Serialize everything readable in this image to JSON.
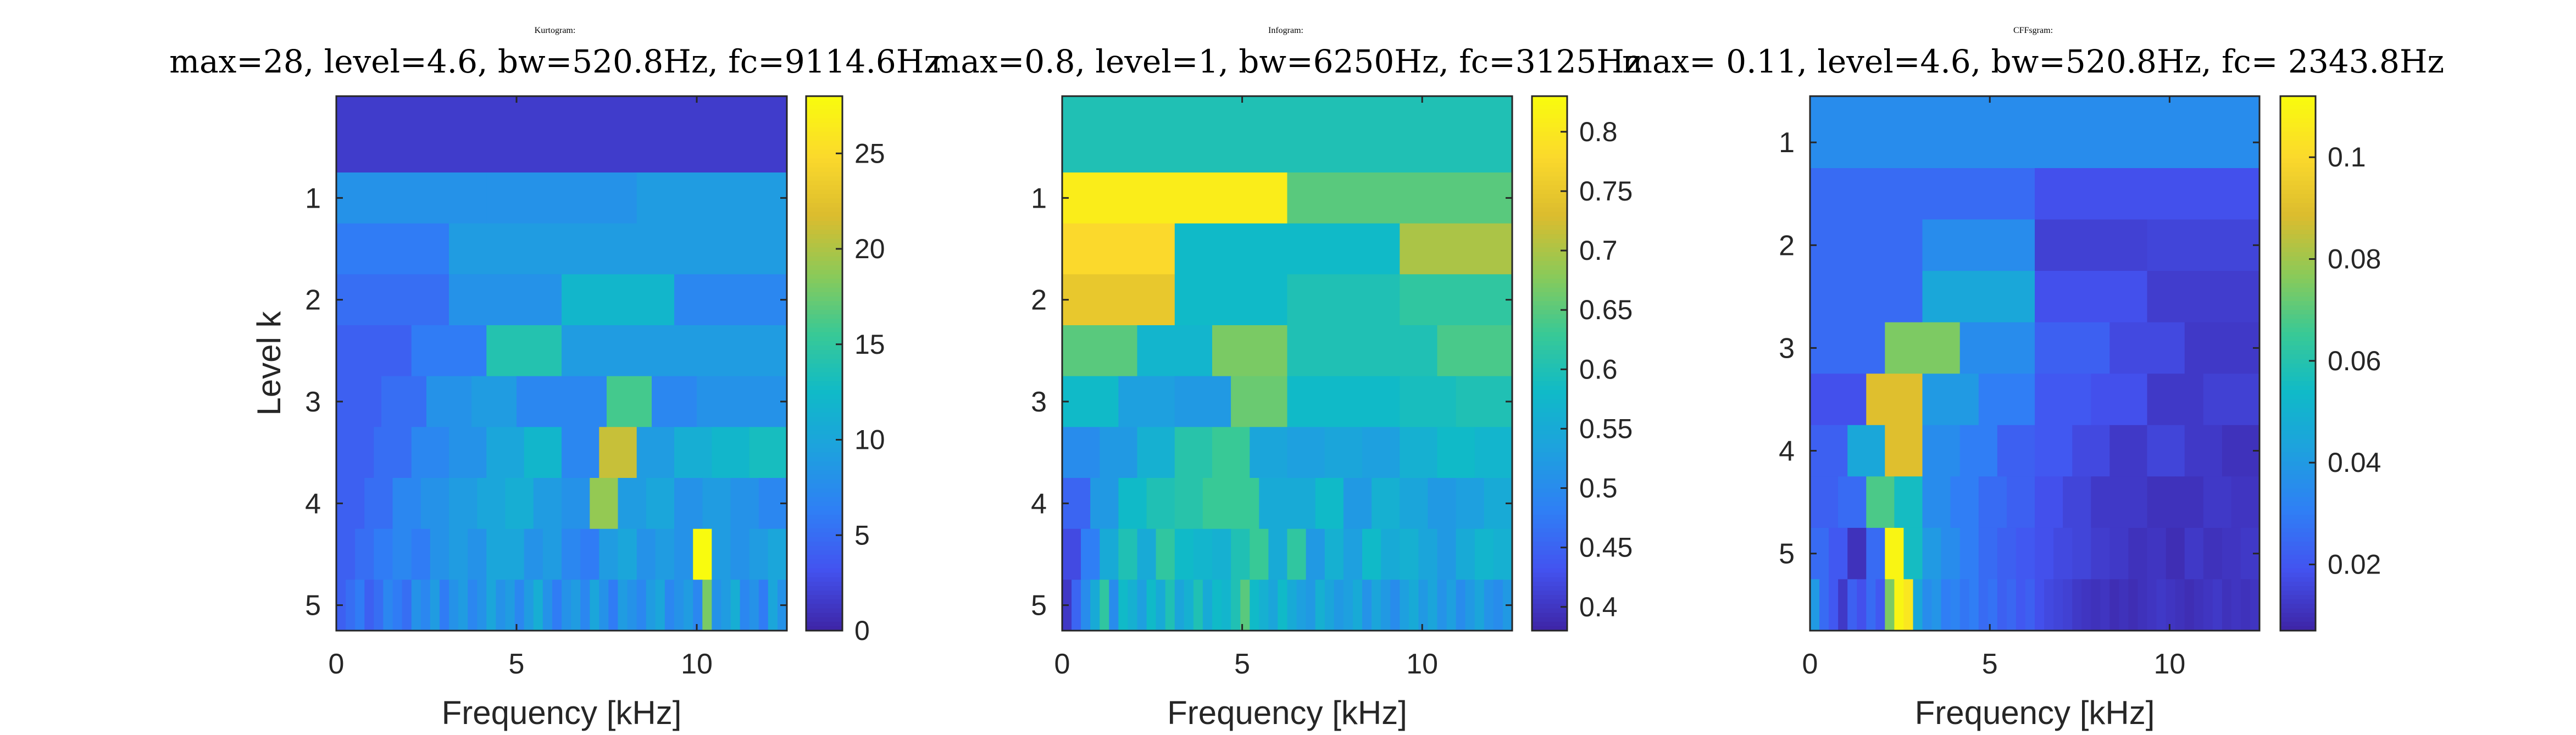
{
  "colormap": {
    "name": "parula",
    "stops": [
      "#3e26a8",
      "#4353f0",
      "#2f7ff5",
      "#1ea0df",
      "#10bac8",
      "#38c996",
      "#8bca58",
      "#dbbc2e",
      "#fbd92c",
      "#f9fb0e"
    ]
  },
  "chart_data": [
    {
      "type": "heatmap",
      "title_bold": "Kurtogram",
      "title_colon": ":",
      "subtitle": "max=28, level=4.6, bw=520.8Hz, fc=9114.6Hz",
      "xlabel": "Frequency [kHz]",
      "ylabel": "Level k",
      "xlim": [
        0,
        12.5
      ],
      "ylim": [
        0,
        5.25
      ],
      "xticks": [
        0,
        5,
        10
      ],
      "yticks": [
        1,
        2,
        3,
        4,
        5
      ],
      "clim": [
        0,
        28
      ],
      "cticks": [
        0,
        5,
        10,
        15,
        20,
        25
      ],
      "rows": [
        [
          1.5
        ],
        [
          8,
          8,
          9
        ],
        [
          6,
          9,
          9,
          9
        ],
        [
          5,
          5,
          8,
          8,
          12,
          12,
          7,
          7
        ],
        [
          4,
          6,
          14,
          9,
          9,
          9
        ],
        [
          4,
          5,
          8,
          9,
          7,
          7,
          16,
          7,
          8,
          8
        ],
        [
          4,
          5,
          7,
          8,
          10,
          12,
          7,
          21,
          9,
          11,
          12,
          13
        ],
        [
          4,
          5,
          7,
          8,
          9,
          10,
          11,
          9,
          8,
          19,
          9,
          10,
          8,
          9,
          8,
          7
        ],
        [
          4,
          5,
          6,
          7,
          6,
          8,
          9,
          8,
          10,
          10,
          8,
          9,
          7,
          6,
          9,
          10,
          8,
          9,
          8,
          28,
          9,
          8,
          9,
          10
        ],
        [
          4,
          5,
          6,
          4,
          5,
          7,
          6,
          5,
          8,
          7,
          9,
          6,
          8,
          9,
          7,
          8,
          10,
          8,
          9,
          7,
          9,
          11,
          8,
          6,
          8,
          9,
          7,
          10,
          8,
          6,
          9,
          8,
          7,
          9,
          10,
          7,
          8,
          9,
          7,
          18,
          8,
          9,
          11,
          7,
          8,
          6,
          10,
          8
        ]
      ]
    },
    {
      "type": "heatmap",
      "title_bold": "Infogram",
      "title_colon": ":",
      "subtitle": "max=0.8, level=1, bw=6250Hz, fc=3125Hz",
      "xlabel": "Frequency [kHz]",
      "ylabel": "",
      "xlim": [
        0,
        12.5
      ],
      "ylim": [
        0,
        5.25
      ],
      "xticks": [
        0,
        5,
        10
      ],
      "yticks": [
        1,
        2,
        3,
        4,
        5
      ],
      "clim": [
        0.38,
        0.83
      ],
      "cticks": [
        0.4,
        0.45,
        0.5,
        0.55,
        0.6,
        0.65,
        0.7,
        0.75,
        0.8
      ],
      "rows": [
        [
          0.6
        ],
        [
          0.81,
          0.65
        ],
        [
          0.78,
          0.58,
          0.58,
          0.7
        ],
        [
          0.75,
          0.58,
          0.6,
          0.62
        ],
        [
          0.65,
          0.57,
          0.67,
          0.6,
          0.6,
          0.64
        ],
        [
          0.58,
          0.53,
          0.52,
          0.66,
          0.58,
          0.58,
          0.59,
          0.6
        ],
        [
          0.5,
          0.52,
          0.56,
          0.61,
          0.63,
          0.54,
          0.53,
          0.54,
          0.53,
          0.56,
          0.58,
          0.57
        ],
        [
          0.45,
          0.52,
          0.58,
          0.6,
          0.61,
          0.63,
          0.63,
          0.55,
          0.55,
          0.58,
          0.52,
          0.56,
          0.54,
          0.52,
          0.53,
          0.55
        ],
        [
          0.42,
          0.48,
          0.55,
          0.6,
          0.55,
          0.62,
          0.58,
          0.57,
          0.56,
          0.6,
          0.63,
          0.55,
          0.62,
          0.52,
          0.56,
          0.53,
          0.58,
          0.55,
          0.56,
          0.54,
          0.52,
          0.55,
          0.57,
          0.56
        ],
        [
          0.4,
          0.45,
          0.5,
          0.55,
          0.62,
          0.5,
          0.58,
          0.56,
          0.53,
          0.58,
          0.55,
          0.6,
          0.54,
          0.56,
          0.6,
          0.55,
          0.58,
          0.57,
          0.6,
          0.65,
          0.58,
          0.56,
          0.54,
          0.58,
          0.55,
          0.53,
          0.52,
          0.56,
          0.54,
          0.52,
          0.53,
          0.55,
          0.51,
          0.54,
          0.52,
          0.5,
          0.53,
          0.55,
          0.52,
          0.54,
          0.51,
          0.53,
          0.5,
          0.52,
          0.54,
          0.51,
          0.5,
          0.52
        ]
      ]
    },
    {
      "type": "heatmap",
      "title_bold": "CFFsgram",
      "title_colon": ":",
      "subtitle": "max= 0.11, level=4.6, bw=520.8Hz, fc= 2343.8Hz",
      "xlabel": "Frequency [kHz]",
      "ylabel": "",
      "xlim": [
        0,
        12.5
      ],
      "ylim": [
        0.55,
        5.75
      ],
      "xticks": [
        0,
        5,
        10
      ],
      "yticks": [
        1,
        2,
        3,
        4,
        5
      ],
      "clim": [
        0.007,
        0.112
      ],
      "cticks": [
        0.02,
        0.04,
        0.06,
        0.08,
        0.1
      ],
      "rows": [
        [
          0.035
        ],
        [
          0.025,
          0.018
        ],
        [
          0.025,
          0.035,
          0.014,
          0.015
        ],
        [
          0.025,
          0.045,
          0.018,
          0.013
        ],
        [
          0.025,
          0.075,
          0.035,
          0.022,
          0.016,
          0.012
        ],
        [
          0.018,
          0.09,
          0.04,
          0.03,
          0.02,
          0.018,
          0.012,
          0.014
        ],
        [
          0.022,
          0.045,
          0.09,
          0.035,
          0.03,
          0.022,
          0.02,
          0.016,
          0.012,
          0.015,
          0.012,
          0.01
        ],
        [
          0.022,
          0.025,
          0.068,
          0.055,
          0.035,
          0.03,
          0.025,
          0.022,
          0.018,
          0.015,
          0.012,
          0.012,
          0.01,
          0.01,
          0.012,
          0.011
        ],
        [
          0.025,
          0.02,
          0.01,
          0.025,
          0.11,
          0.055,
          0.04,
          0.035,
          0.03,
          0.025,
          0.022,
          0.02,
          0.018,
          0.016,
          0.015,
          0.013,
          0.012,
          0.01,
          0.011,
          0.009,
          0.012,
          0.01,
          0.011,
          0.012
        ],
        [
          0.04,
          0.025,
          0.02,
          0.012,
          0.022,
          0.018,
          0.025,
          0.02,
          0.075,
          0.11,
          0.105,
          0.045,
          0.035,
          0.038,
          0.03,
          0.032,
          0.028,
          0.03,
          0.025,
          0.027,
          0.022,
          0.024,
          0.02,
          0.022,
          0.018,
          0.016,
          0.015,
          0.014,
          0.012,
          0.011,
          0.01,
          0.011,
          0.009,
          0.01,
          0.009,
          0.01,
          0.011,
          0.012,
          0.011,
          0.01,
          0.009,
          0.01,
          0.011,
          0.012,
          0.01,
          0.011,
          0.01,
          0.011
        ]
      ]
    }
  ]
}
